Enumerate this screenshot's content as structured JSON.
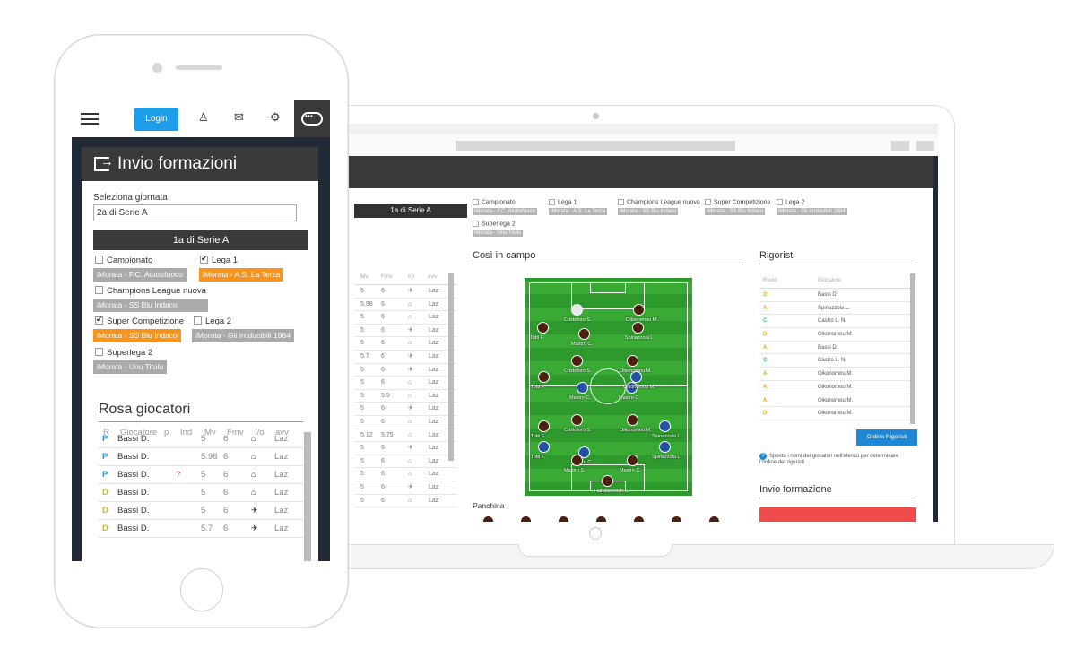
{
  "phone": {
    "nav": {
      "login_label": "Login"
    },
    "card": {
      "title": "Invio formazioni",
      "select_label": "Seleziona giornata",
      "select_value": "2a di Serie A",
      "current_matchday": "1a di Serie A",
      "competitions": [
        {
          "name": "Campionato",
          "checked": false,
          "team": "iMorata - F.C. Atuttofuoco",
          "selected": false
        },
        {
          "name": "Lega 1",
          "checked": true,
          "team": "iMorata - A.S. La Terza",
          "selected": true
        },
        {
          "name": "Champions League nuova",
          "checked": false,
          "team": "iMorata - SS Blu Indaco",
          "selected": false
        },
        {
          "name": "Super Competizione",
          "checked": true,
          "team": "iMorata - SS Blu Indaco",
          "selected": true
        },
        {
          "name": "Lega 2",
          "checked": false,
          "team": "iMorata - Gli Irriducibili 1984",
          "selected": false
        },
        {
          "name": "Superlega 2",
          "checked": false,
          "team": "iMorata - Unu Titulu",
          "selected": false
        }
      ],
      "rosa_title": "Rosa giocatori",
      "columns": [
        "R",
        "Giocatore",
        "p",
        "Ind",
        "Mv",
        "Fmv",
        "I/o",
        "avv"
      ],
      "rows": [
        {
          "r": "P",
          "name": "Bassi D.",
          "ind": "",
          "mv": "5",
          "fmv": "6",
          "io": "home",
          "avv": "Laz"
        },
        {
          "r": "P",
          "name": "Bassi D.",
          "ind": "",
          "mv": "5.98",
          "fmv": "6",
          "io": "home",
          "avv": "Laz"
        },
        {
          "r": "P",
          "name": "Bassi D.",
          "ind": "?",
          "mv": "5",
          "fmv": "6",
          "io": "home",
          "avv": "Laz"
        },
        {
          "r": "D",
          "name": "Bassi D.",
          "ind": "",
          "mv": "5",
          "fmv": "6",
          "io": "home",
          "avv": "Laz"
        },
        {
          "r": "D",
          "name": "Bassi D.",
          "ind": "",
          "mv": "5",
          "fmv": "6",
          "io": "away",
          "avv": "Laz"
        },
        {
          "r": "D",
          "name": "Bassi D.",
          "ind": "",
          "mv": "5.7",
          "fmv": "6",
          "io": "away",
          "avv": "Laz"
        }
      ]
    }
  },
  "laptop": {
    "current_matchday": "1a di Serie A",
    "competitions": [
      {
        "name": "Campionato",
        "team": "iMorata - F.C. Atuttofuoco"
      },
      {
        "name": "Lega 1",
        "team": "iMorata - A.S. La Terza"
      },
      {
        "name": "Champions League nuova",
        "team": "iMorata - SS Blu Indaco"
      },
      {
        "name": "Super Competizione",
        "team": "iMorata - SS Blu Indaco"
      },
      {
        "name": "Lega 2",
        "team": "iMorata - Gli Irriducibili 1984"
      },
      {
        "name": "Superlega 2",
        "team": "iMorata - Unu Titulu"
      }
    ],
    "rosa_columns": [
      "Mv",
      "Fmv",
      "I/o",
      "avv"
    ],
    "rosa_rows": [
      [
        "5",
        "6",
        "Laz"
      ],
      [
        "5.98",
        "6",
        "Laz"
      ],
      [
        "5",
        "6",
        "Laz"
      ],
      [
        "5",
        "6",
        "Laz"
      ],
      [
        "5",
        "6",
        "Laz"
      ],
      [
        "5.7",
        "6",
        "Laz"
      ],
      [
        "5",
        "6",
        "Laz"
      ],
      [
        "5",
        "6",
        "Laz"
      ],
      [
        "5",
        "5.5",
        "Laz"
      ],
      [
        "5",
        "6",
        "Laz"
      ],
      [
        "5",
        "6",
        "Laz"
      ],
      [
        "5.12",
        "5.75",
        "Laz"
      ],
      [
        "5",
        "6",
        "Laz"
      ],
      [
        "5",
        "6",
        "Laz"
      ],
      [
        "5",
        "6",
        "Laz"
      ],
      [
        "5",
        "6",
        "Laz"
      ],
      [
        "5",
        "6",
        "Laz"
      ]
    ],
    "campo_title": "Così in campo",
    "players": [
      {
        "name": "Cristoforo S."
      },
      {
        "name": "Oikonomou M."
      },
      {
        "name": "Totti F."
      },
      {
        "name": "Mastro C."
      },
      {
        "name": "Spinazzola L."
      },
      {
        "name": "Cristoforo S."
      },
      {
        "name": "Oikonomou M."
      },
      {
        "name": "Mastro C."
      },
      {
        "name": "Mastro C."
      },
      {
        "name": "Totti F."
      },
      {
        "name": "Oikonomou M."
      },
      {
        "name": "Totti F."
      },
      {
        "name": "Spinazzola L."
      },
      {
        "name": "Cristoforo S."
      },
      {
        "name": "Oikonomou M."
      },
      {
        "name": "Totti F."
      },
      {
        "name": "Mastro C."
      },
      {
        "name": "Spinazzola L."
      },
      {
        "name": "Mastro S."
      },
      {
        "name": "Mastro C."
      },
      {
        "name": "Handanovich S."
      }
    ],
    "panchina_label": "Panchina",
    "rigoristi_title": "Rigoristi",
    "rigoristi_columns": [
      "Ruolo",
      "Giocatore"
    ],
    "rigoristi": [
      {
        "r": "D",
        "name": "Bassi D."
      },
      {
        "r": "A",
        "name": "Spinazzola L."
      },
      {
        "r": "C",
        "name": "Castro L. N."
      },
      {
        "r": "D",
        "name": "Oikonomou M."
      },
      {
        "r": "A",
        "name": "Bassi D."
      },
      {
        "r": "C",
        "name": "Castro L. N."
      },
      {
        "r": "A",
        "name": "Oikonomou M."
      },
      {
        "r": "A",
        "name": "Oikonomou M."
      },
      {
        "r": "A",
        "name": "Oikonomou M."
      },
      {
        "r": "D",
        "name": "Oikonomou M."
      }
    ],
    "ordina_label": "Ordina Rigoristi",
    "info_text": "Sposta i nomi dei giocatori nell'elenco per determinare l'ordine dei rigoristi",
    "invio_title": "Invio formazione"
  },
  "colors": {
    "accent": "#1e9ee8",
    "selected_tag": "#f7941d",
    "dark_header": "#3a3a3a",
    "send_button": "#ef4b4b",
    "pitch": "#39ab35"
  }
}
